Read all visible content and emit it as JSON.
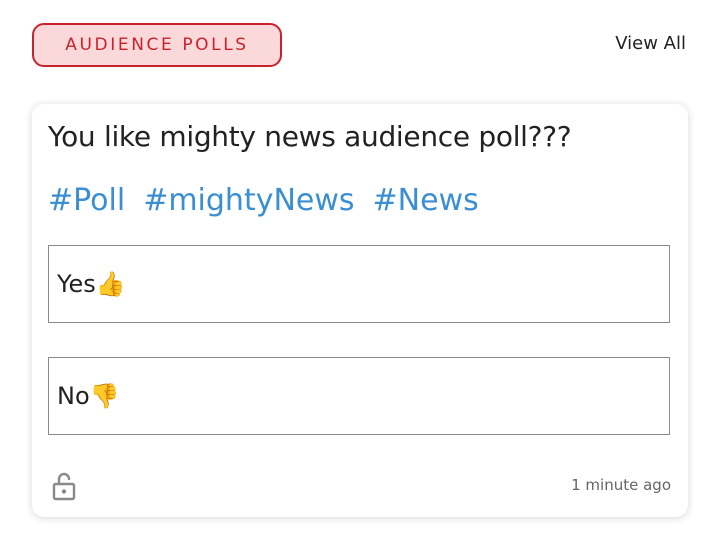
{
  "header": {
    "badge_label": "AUDIENCE POLLS",
    "view_all_label": "View All"
  },
  "poll": {
    "question": "You like mighty news audience poll???",
    "tags": [
      "#Poll",
      "#mightyNews",
      "#News"
    ],
    "options": [
      {
        "label": "Yes👍"
      },
      {
        "label": "No👎"
      }
    ],
    "lock_icon": "unlocked-padlock-icon",
    "timestamp": "1 minute ago"
  },
  "colors": {
    "badge_border": "#c8232c",
    "badge_background": "#fbd9da",
    "tag_color": "#3a8fd3"
  }
}
